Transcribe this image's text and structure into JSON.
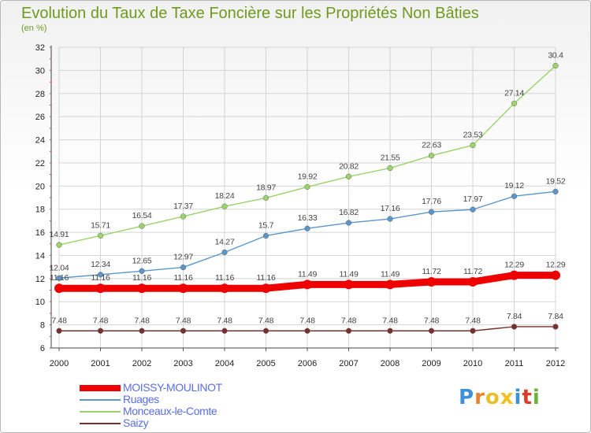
{
  "title": "Evolution du Taux de Taxe Foncière sur les Propriétés Non Bâties",
  "unit_label": "(en %)",
  "logo": {
    "text": "Proxiti",
    "colors": [
      "#3f8fd6",
      "#e8802c",
      "#e8c02c",
      "#f0c020",
      "#3f8fd6",
      "#e23a2a",
      "#6bb33a"
    ]
  },
  "chart_data": {
    "type": "line",
    "title": "Evolution du Taux de Taxe Foncière sur les Propriétés Non Bâties",
    "ylabel": "(en %)",
    "xlabel": "",
    "x": [
      "2000",
      "2001",
      "2002",
      "2003",
      "2004",
      "2005",
      "2006",
      "2007",
      "2008",
      "2009",
      "2010",
      "2011",
      "2012"
    ],
    "ylim": [
      6,
      32
    ],
    "yticks": [
      "6",
      "8",
      "10",
      "12",
      "14",
      "16",
      "18",
      "20",
      "22",
      "24",
      "26",
      "28",
      "30",
      "32"
    ],
    "grid": true,
    "legend_position": "bottom-left",
    "series": [
      {
        "name": "MOISSY-MOULINOT",
        "color": "#ee0000",
        "values": [
          11.16,
          11.16,
          11.16,
          11.16,
          11.16,
          11.16,
          11.49,
          11.49,
          11.49,
          11.72,
          11.72,
          12.29,
          12.29
        ],
        "labels": [
          "11.16",
          "11.16",
          "11.16",
          "11.16",
          "11.16",
          "11.16",
          "11.49",
          "11.49",
          "11.49",
          "11.72",
          "11.72",
          "12.29",
          "12.29"
        ]
      },
      {
        "name": "Ruages",
        "color": "#5b96c9",
        "values": [
          12.04,
          12.34,
          12.65,
          12.97,
          14.27,
          15.7,
          16.33,
          16.82,
          17.16,
          17.76,
          17.97,
          19.12,
          19.52
        ],
        "labels": [
          "12.04",
          "12.34",
          "12.65",
          "12.97",
          "14.27",
          "15.7",
          "16.33",
          "16.82",
          "17.16",
          "17.76",
          "17.97",
          "19.12",
          "19.52"
        ]
      },
      {
        "name": "Monceaux-le-Comte",
        "color": "#9bd36a",
        "values": [
          14.91,
          15.71,
          16.54,
          17.37,
          18.24,
          18.97,
          19.92,
          20.82,
          21.55,
          22.63,
          23.53,
          27.14,
          30.4
        ],
        "labels": [
          "14.91",
          "15.71",
          "16.54",
          "17.37",
          "18.24",
          "18.97",
          "19.92",
          "20.82",
          "21.55",
          "22.63",
          "23.53",
          "27.14",
          "30.4"
        ]
      },
      {
        "name": "Saizy",
        "color": "#7a2f2f",
        "values": [
          7.48,
          7.48,
          7.48,
          7.48,
          7.48,
          7.48,
          7.48,
          7.48,
          7.48,
          7.48,
          7.48,
          7.84,
          7.84
        ],
        "labels": [
          "7.48",
          "7.48",
          "7.48",
          "7.48",
          "7.48",
          "7.48",
          "7.48",
          "7.48",
          "7.48",
          "7.48",
          "7.48",
          "7.84",
          "7.84"
        ]
      }
    ]
  }
}
